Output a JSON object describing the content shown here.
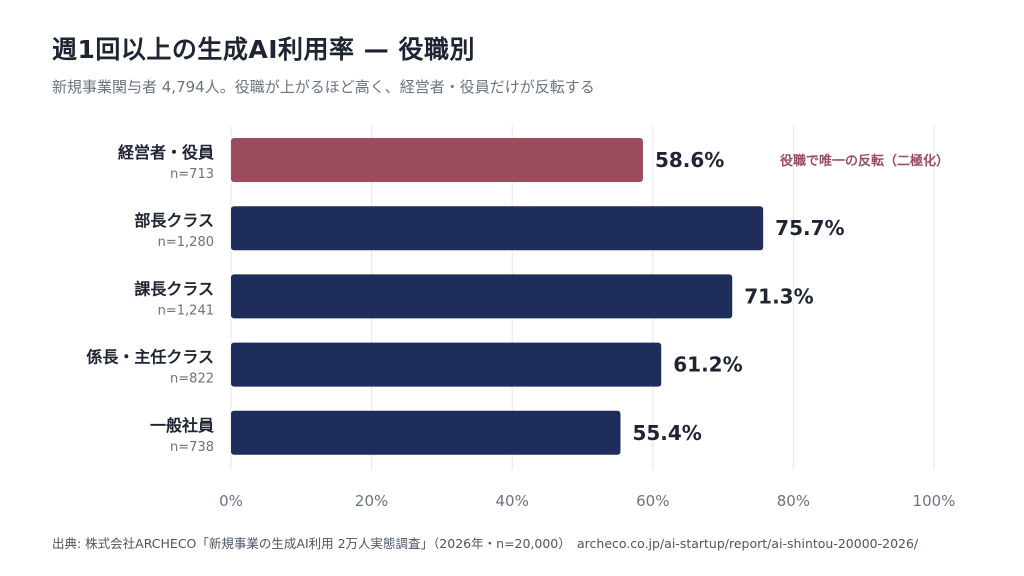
{
  "chart_data": {
    "type": "bar",
    "orientation": "horizontal",
    "title": "週1回以上の生成AI利用率 — 役職別",
    "subtitle": "新規事業関与者 4,794人。役職が上がるほど高く、経営者・役員だけが反転する",
    "categories": [
      "経営者・役員",
      "部長クラス",
      "課長クラス",
      "係長・主任クラス",
      "一般社員"
    ],
    "sample_sizes": [
      "n=713",
      "n=1,280",
      "n=1,241",
      "n=822",
      "n=738"
    ],
    "values": [
      58.6,
      75.7,
      71.3,
      61.2,
      55.4
    ],
    "value_labels": [
      "58.6%",
      "75.7%",
      "71.3%",
      "61.2%",
      "55.4%"
    ],
    "xlim": [
      0,
      100
    ],
    "x_ticks": [
      0,
      20,
      40,
      60,
      80,
      100
    ],
    "x_tick_labels": [
      "0%",
      "20%",
      "40%",
      "60%",
      "80%",
      "100%"
    ],
    "grid": true,
    "colors": {
      "default_bar": "#1e2d5a",
      "highlight_bar": "#9b4d5f",
      "annotation": "#9b4d5f",
      "grid": "#e5e7eb"
    },
    "highlight_index": 0,
    "annotation": {
      "text": "役職で唯一の反転（二極化）",
      "category_index": 0
    }
  },
  "source": "出典: 株式会社ARCHECO「新規事業の生成AI利用 2万人実態調査」（2026年・n=20,000）　archeco.co.jp/ai-startup/report/ai-shintou-20000-2026/"
}
